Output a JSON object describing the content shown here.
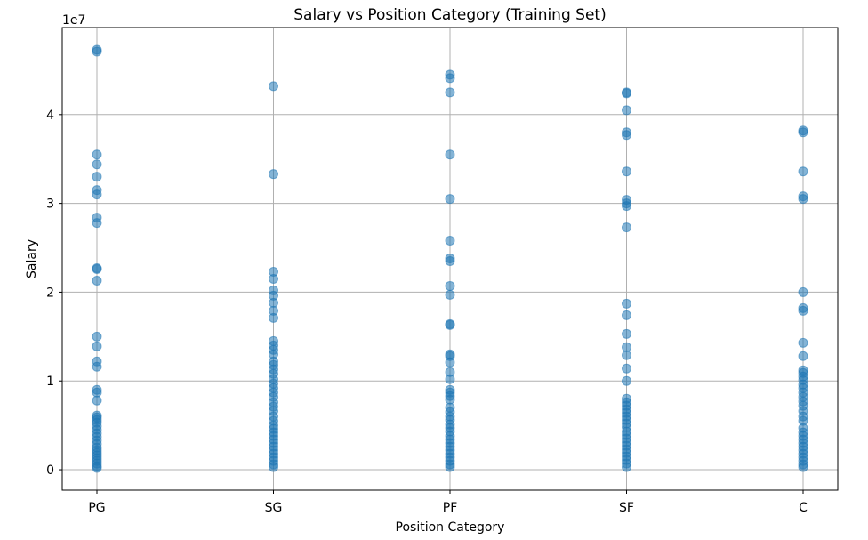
{
  "chart_data": {
    "type": "scatter",
    "title": "Salary vs Position Category (Training Set)",
    "xlabel": "Position Category",
    "ylabel": "Salary",
    "offset_text": "1e7",
    "categories": [
      "PG",
      "SG",
      "PF",
      "SF",
      "C"
    ],
    "y_ticks": [
      0,
      10000000,
      20000000,
      30000000,
      40000000
    ],
    "y_tick_labels": [
      "0",
      "1",
      "2",
      "3",
      "4"
    ],
    "ylim": [
      -2300000,
      49800000
    ],
    "grid": true,
    "point_color": "#1f77b4",
    "point_alpha": 0.55,
    "series": [
      {
        "category": "PG",
        "values": [
          47300000,
          47100000,
          35500000,
          34400000,
          33000000,
          31500000,
          31000000,
          28400000,
          27800000,
          22700000,
          22600000,
          21300000,
          15000000,
          13900000,
          12200000,
          11600000,
          9000000,
          8700000,
          7800000,
          6100000,
          5900000,
          5600000,
          5300000,
          4900000,
          4500000,
          4100000,
          3700000,
          3300000,
          2900000,
          2500000,
          2200000,
          1900000,
          1600000,
          1300000,
          1000000,
          700000,
          400000,
          200000
        ]
      },
      {
        "category": "SG",
        "values": [
          43200000,
          33300000,
          22300000,
          21500000,
          20200000,
          19600000,
          18800000,
          17900000,
          17100000,
          14500000,
          14000000,
          13500000,
          13000000,
          12200000,
          11800000,
          11300000,
          10800000,
          10200000,
          9700000,
          9200000,
          8700000,
          8200000,
          7600000,
          7100000,
          6600000,
          6000000,
          5500000,
          5000000,
          4600000,
          4200000,
          3800000,
          3400000,
          3000000,
          2600000,
          2200000,
          1800000,
          1400000,
          1000000,
          600000,
          300000
        ]
      },
      {
        "category": "PF",
        "values": [
          44500000,
          44100000,
          42500000,
          35500000,
          30500000,
          25800000,
          23800000,
          23500000,
          20700000,
          19700000,
          16400000,
          16300000,
          13000000,
          12800000,
          12100000,
          11000000,
          10200000,
          9000000,
          8700000,
          8300000,
          7900000,
          7000000,
          6500000,
          6000000,
          5600000,
          5100000,
          4700000,
          4300000,
          3800000,
          3400000,
          3000000,
          2600000,
          2200000,
          1800000,
          1400000,
          1000000,
          600000,
          300000
        ]
      },
      {
        "category": "SF",
        "values": [
          42500000,
          42400000,
          40500000,
          38000000,
          37700000,
          33600000,
          30400000,
          30000000,
          29700000,
          27300000,
          18700000,
          17400000,
          15300000,
          13800000,
          12900000,
          11400000,
          10000000,
          8000000,
          7600000,
          7200000,
          6800000,
          6400000,
          6000000,
          5600000,
          5200000,
          4800000,
          4300000,
          3900000,
          3500000,
          3100000,
          2700000,
          2300000,
          1900000,
          1500000,
          1100000,
          700000,
          300000
        ]
      },
      {
        "category": "C",
        "values": [
          38200000,
          38000000,
          33600000,
          30800000,
          30500000,
          20000000,
          18200000,
          17900000,
          14300000,
          12800000,
          11200000,
          10900000,
          10500000,
          10100000,
          9600000,
          9200000,
          8700000,
          8200000,
          7700000,
          7200000,
          6600000,
          6000000,
          5500000,
          4700000,
          4200000,
          3800000,
          3400000,
          3000000,
          2600000,
          2200000,
          1800000,
          1400000,
          1000000,
          600000,
          300000
        ]
      }
    ]
  }
}
